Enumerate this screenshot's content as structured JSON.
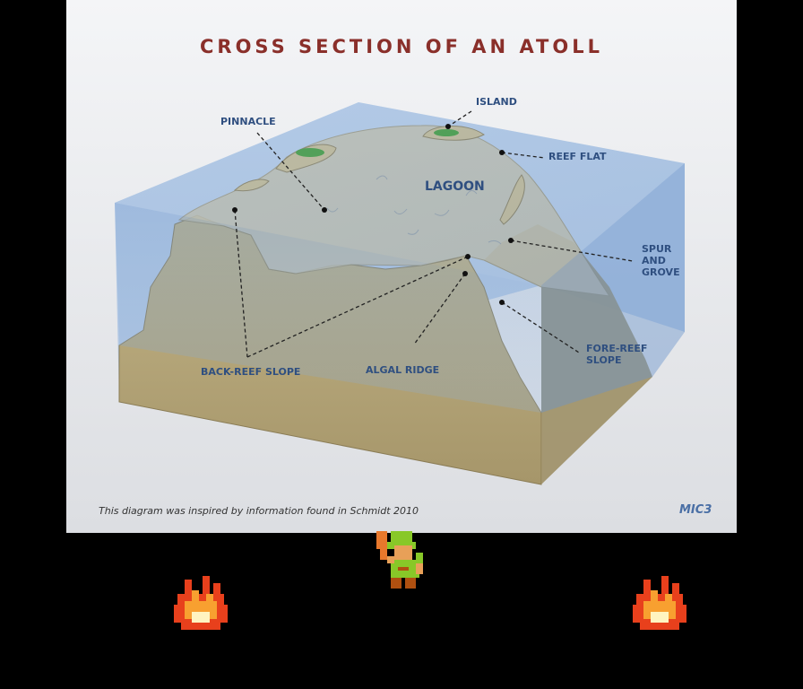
{
  "title": "CROSS SECTION OF AN ATOLL",
  "labels": {
    "island": "ISLAND",
    "pinnacle": "PINNACLE",
    "reef_flat": "REEF FLAT",
    "lagoon": "LAGOON",
    "spur_1": "SPUR",
    "spur_2": "AND",
    "spur_3": "GROVE",
    "fore_reef_1": "FORE-REEF",
    "fore_reef_2": "SLOPE",
    "back_reef": "BACK-REEF SLOPE",
    "algal_ridge": "ALGAL RIDGE"
  },
  "credit": "This diagram was inspired by information found in Schmidt 2010",
  "logo": "MIC3",
  "colors": {
    "water": "#7fa8d6",
    "rock": "#b5a57a",
    "rock_shadow": "#8a7c55",
    "vegetation": "#3e9a2e",
    "label": "#2f4f80",
    "title": "#8a2f2a"
  },
  "sprites": [
    "fire-left",
    "link-hero",
    "fire-right"
  ]
}
